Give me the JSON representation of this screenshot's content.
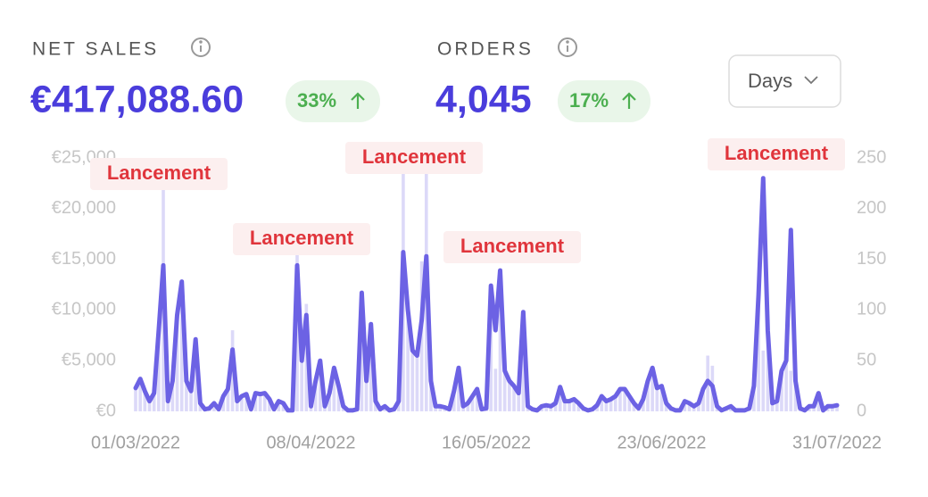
{
  "header": {
    "net_sales": {
      "label": "NET SALES",
      "value": "€417,088.60",
      "change": "33%"
    },
    "orders": {
      "label": "ORDERS",
      "value": "4,045",
      "change": "17%"
    },
    "period_select": "Days"
  },
  "chart_data": {
    "type": "combo",
    "categories": [
      "01/03/2022",
      null,
      null,
      null,
      null,
      null,
      null,
      null,
      null,
      null,
      null,
      null,
      null,
      null,
      null,
      null,
      null,
      null,
      null,
      null,
      null,
      null,
      null,
      null,
      null,
      null,
      null,
      null,
      null,
      null,
      null,
      null,
      null,
      null,
      null,
      null,
      null,
      null,
      "08/04/2022",
      null,
      null,
      null,
      null,
      null,
      null,
      null,
      null,
      null,
      null,
      null,
      null,
      null,
      null,
      null,
      null,
      null,
      null,
      null,
      null,
      null,
      null,
      null,
      null,
      null,
      null,
      null,
      null,
      null,
      null,
      null,
      null,
      null,
      null,
      null,
      null,
      null,
      "16/05/2022",
      null,
      null,
      null,
      null,
      null,
      null,
      null,
      null,
      null,
      null,
      null,
      null,
      null,
      null,
      null,
      null,
      null,
      null,
      null,
      null,
      null,
      null,
      null,
      null,
      null,
      null,
      null,
      null,
      null,
      null,
      null,
      null,
      null,
      null,
      null,
      null,
      null,
      "23/06/2022",
      null,
      null,
      null,
      null,
      null,
      null,
      null,
      null,
      null,
      null,
      null,
      null,
      null,
      null,
      null,
      null,
      null,
      null,
      null,
      null,
      null,
      null,
      null,
      null,
      null,
      null,
      null,
      null,
      null,
      null,
      null,
      null,
      null,
      null,
      null,
      null,
      null,
      "31/07/2022"
    ],
    "series": [
      {
        "name": "Net sales",
        "type": "bar",
        "axis": "y",
        "color": "#dcd9f8",
        "values": [
          2300,
          3200,
          2000,
          1000,
          1800,
          8000,
          22800,
          1000,
          3000,
          9500,
          12800,
          3000,
          2000,
          7100,
          800,
          200,
          300,
          800,
          200,
          1500,
          2200,
          8000,
          1000,
          1500,
          1700,
          200,
          1800,
          1700,
          1800,
          1200,
          200,
          1000,
          800,
          100,
          100,
          15700,
          5000,
          10600,
          500,
          3000,
          5000,
          500,
          1800,
          4300,
          2500,
          500,
          100,
          100,
          200,
          11700,
          3000,
          8600,
          1000,
          200,
          500,
          100,
          200,
          1000,
          23900,
          10000,
          6000,
          5500,
          14800,
          23900,
          3000,
          500,
          500,
          400,
          200,
          2000,
          4300,
          500,
          800,
          1500,
          2200,
          200,
          300,
          12400,
          4200,
          13900,
          4000,
          3000,
          2500,
          1800,
          9800,
          500,
          200,
          100,
          500,
          600,
          500,
          800,
          2400,
          1000,
          1000,
          1200,
          800,
          300,
          100,
          200,
          600,
          1500,
          1000,
          1200,
          1500,
          2200,
          2200,
          1500,
          800,
          300,
          1200,
          3000,
          4300,
          2300,
          2500,
          800,
          300,
          100,
          100,
          1000,
          800,
          500,
          800,
          2200,
          5500,
          4500,
          500,
          100,
          300,
          500,
          100,
          100,
          100,
          300,
          2500,
          11500,
          6000,
          8000,
          800,
          1000,
          4000,
          5000,
          4000,
          3000,
          300,
          100,
          500,
          500,
          1800,
          100,
          500,
          500,
          600
        ]
      },
      {
        "name": "Orders",
        "type": "line",
        "axis": "y2",
        "color": "#6c62e4",
        "values": [
          23,
          32,
          20,
          10,
          18,
          80,
          144,
          10,
          30,
          95,
          128,
          30,
          20,
          71,
          8,
          2,
          3,
          8,
          2,
          15,
          22,
          61,
          10,
          15,
          17,
          2,
          18,
          17,
          18,
          12,
          2,
          10,
          8,
          1,
          1,
          144,
          50,
          95,
          5,
          30,
          50,
          5,
          18,
          43,
          25,
          5,
          1,
          1,
          2,
          117,
          30,
          86,
          10,
          2,
          5,
          1,
          2,
          10,
          157,
          100,
          60,
          55,
          90,
          153,
          30,
          5,
          5,
          4,
          2,
          20,
          43,
          5,
          8,
          15,
          22,
          2,
          3,
          124,
          80,
          139,
          40,
          30,
          25,
          18,
          98,
          5,
          2,
          1,
          5,
          6,
          5,
          8,
          24,
          10,
          10,
          12,
          8,
          3,
          1,
          2,
          6,
          15,
          10,
          12,
          15,
          22,
          22,
          15,
          8,
          3,
          12,
          30,
          43,
          23,
          25,
          8,
          3,
          1,
          1,
          10,
          8,
          5,
          8,
          22,
          30,
          25,
          5,
          1,
          3,
          5,
          1,
          1,
          1,
          3,
          25,
          115,
          230,
          80,
          8,
          10,
          40,
          50,
          179,
          30,
          3,
          1,
          5,
          5,
          18,
          1,
          5,
          5,
          6
        ]
      }
    ],
    "ylim": [
      0,
      25000
    ],
    "yticks": [
      {
        "value": 0,
        "label": "€0"
      },
      {
        "value": 5000,
        "label": "€5,000"
      },
      {
        "value": 10000,
        "label": "€10,000"
      },
      {
        "value": 15000,
        "label": "€15,000"
      },
      {
        "value": 20000,
        "label": "€20,000"
      },
      {
        "value": 25000,
        "label": "€25,000"
      }
    ],
    "y2lim": [
      0,
      250
    ],
    "y2ticks": [
      0,
      50,
      100,
      150,
      200,
      250
    ],
    "annotations": [
      "Lancement",
      "Lancement",
      "Lancement",
      "Lancement",
      "Lancement"
    ]
  }
}
